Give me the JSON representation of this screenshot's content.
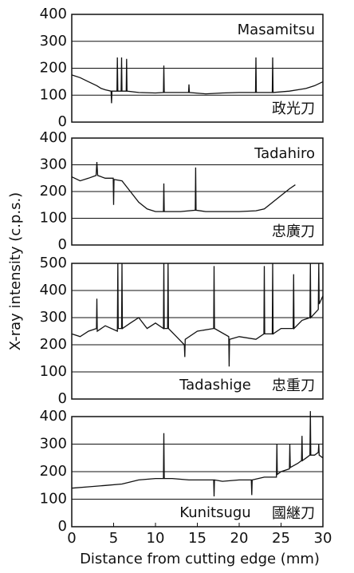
{
  "chart_data": [
    {
      "type": "line",
      "title": "Masamitsu",
      "title_loc": "upper right",
      "label": "政光刀",
      "ylabel": "X-ray intensity (c.p.s.)",
      "xlim": [
        0,
        30
      ],
      "ylim": [
        0,
        400
      ],
      "yticks": [
        0,
        100,
        200,
        300,
        400
      ],
      "grid": true,
      "color": "#111111",
      "x": [
        0,
        1,
        2,
        3,
        3.5,
        4,
        4.7,
        4.75,
        4.8,
        5.4,
        5.45,
        5.5,
        5.9,
        5.95,
        6,
        6.5,
        6.55,
        6.6,
        8,
        10,
        10.95,
        11,
        11.05,
        13,
        13.95,
        14,
        14.05,
        16,
        18,
        20,
        21.95,
        22,
        22.05,
        23.95,
        24,
        24.05,
        26,
        28,
        29,
        30
      ],
      "values": [
        175,
        165,
        150,
        135,
        125,
        120,
        115,
        70,
        115,
        115,
        240,
        115,
        115,
        240,
        115,
        115,
        235,
        115,
        110,
        108,
        110,
        210,
        110,
        110,
        110,
        140,
        110,
        105,
        108,
        110,
        110,
        240,
        110,
        110,
        240,
        110,
        115,
        125,
        135,
        150
      ]
    },
    {
      "type": "line",
      "title": "Tadahiro",
      "title_loc": "upper right",
      "label": "忠廣刀",
      "xlim": [
        0,
        30
      ],
      "ylim": [
        0,
        400
      ],
      "yticks": [
        0,
        100,
        200,
        300,
        400
      ],
      "grid": true,
      "color": "#111111",
      "x": [
        0,
        1,
        2,
        2.9,
        3,
        3.1,
        4,
        4.95,
        5,
        5.05,
        6,
        7,
        8,
        9,
        10,
        10.95,
        11,
        11.05,
        12,
        13,
        14.75,
        14.8,
        14.85,
        16,
        18,
        20,
        22,
        23,
        24,
        25,
        26,
        26.7
      ],
      "values": [
        255,
        240,
        250,
        260,
        310,
        260,
        250,
        250,
        150,
        245,
        240,
        200,
        160,
        135,
        125,
        125,
        230,
        125,
        125,
        125,
        130,
        290,
        130,
        125,
        125,
        125,
        128,
        135,
        160,
        185,
        210,
        225
      ]
    },
    {
      "type": "line",
      "title": "Tadashige",
      "title_loc": "lower center",
      "label": "忠重刀",
      "xlim": [
        0,
        30
      ],
      "ylim": [
        0,
        500
      ],
      "yticks": [
        0,
        100,
        200,
        300,
        400,
        500
      ],
      "grid": true,
      "color": "#111111",
      "x": [
        0,
        1,
        2,
        2.95,
        3,
        3.05,
        4,
        5.45,
        5.5,
        5.55,
        5.95,
        6,
        6.05,
        7,
        8,
        9,
        10,
        10.95,
        11,
        11.05,
        11.45,
        11.5,
        11.55,
        12.5,
        13.45,
        13.5,
        13.55,
        15,
        16.95,
        17,
        17.05,
        18.75,
        18.8,
        18.85,
        20,
        22,
        22.95,
        23,
        23.05,
        23.95,
        24,
        24.05,
        25,
        26.45,
        26.5,
        26.55,
        27.5,
        28.45,
        28.5,
        28.55,
        29.45,
        29.5,
        29.55,
        30
      ],
      "values": [
        240,
        230,
        250,
        260,
        370,
        250,
        270,
        250,
        500,
        260,
        260,
        500,
        260,
        280,
        300,
        260,
        280,
        260,
        500,
        260,
        260,
        500,
        260,
        230,
        200,
        155,
        220,
        250,
        260,
        490,
        260,
        230,
        120,
        220,
        230,
        220,
        240,
        490,
        240,
        240,
        500,
        240,
        260,
        260,
        460,
        260,
        290,
        300,
        500,
        300,
        330,
        500,
        350,
        380
      ]
    },
    {
      "type": "line",
      "title": "Kunitsugu",
      "title_loc": "lower center",
      "label": "國継刀",
      "xlabel": "Distance from cutting edge (mm)",
      "xlim": [
        0,
        30
      ],
      "xticks": [
        0,
        5,
        10,
        15,
        20,
        25,
        30
      ],
      "ylim": [
        0,
        400
      ],
      "yticks": [
        0,
        100,
        200,
        300,
        400
      ],
      "grid": true,
      "color": "#111111",
      "x": [
        0,
        2,
        4,
        6,
        8,
        10,
        10.95,
        11,
        11.05,
        12,
        14,
        16,
        16.95,
        17,
        17.05,
        18,
        20,
        21.45,
        21.5,
        21.55,
        23,
        24.45,
        24.5,
        24.55,
        25,
        26,
        26.05,
        26.1,
        27,
        27.45,
        27.5,
        27.55,
        28,
        28.45,
        28.5,
        28.55,
        29,
        29.45,
        29.5,
        29.55,
        30
      ],
      "values": [
        140,
        145,
        150,
        155,
        170,
        175,
        175,
        340,
        175,
        175,
        170,
        170,
        170,
        110,
        170,
        165,
        170,
        170,
        115,
        170,
        180,
        180,
        300,
        190,
        200,
        210,
        300,
        215,
        230,
        240,
        330,
        240,
        250,
        260,
        420,
        260,
        260,
        270,
        300,
        260,
        250
      ]
    }
  ]
}
